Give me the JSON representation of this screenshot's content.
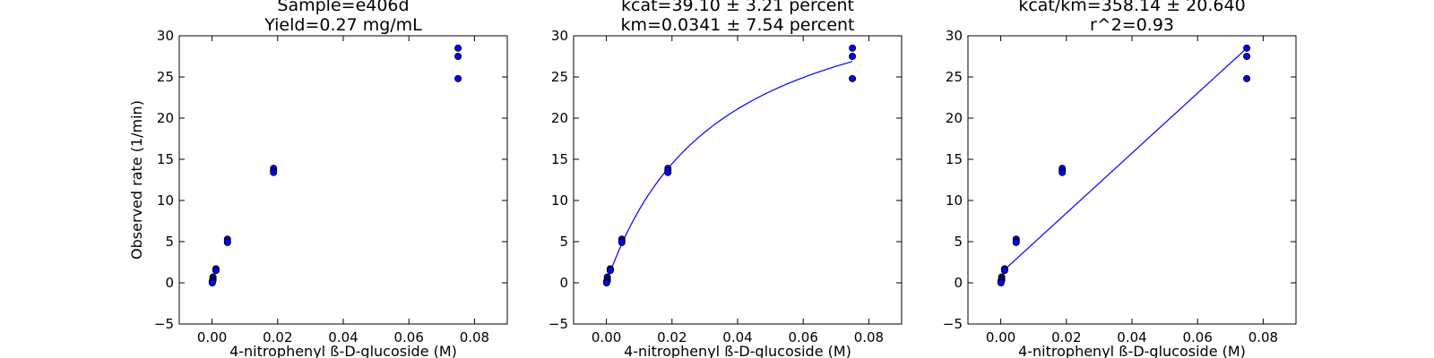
{
  "chart_data": [
    {
      "type": "scatter",
      "title": [
        "Sample=e406d",
        "Yield=0.27 mg/mL"
      ],
      "xlabel": "4-nitrophenyl ß-D-glucoside (M)",
      "ylabel": "Observed rate (1/min)",
      "xlim": [
        -0.01,
        0.09
      ],
      "ylim": [
        -5,
        30
      ],
      "xticks": [
        0.0,
        0.02,
        0.04,
        0.06,
        0.08
      ],
      "xtick_labels": [
        "0.00",
        "0.02",
        "0.04",
        "0.06",
        "0.08"
      ],
      "yticks": [
        -5,
        0,
        5,
        10,
        15,
        20,
        25,
        30
      ],
      "ytick_labels": [
        "−5",
        "0",
        "5",
        "10",
        "15",
        "20",
        "25",
        "30"
      ],
      "points": {
        "x": [
          0.075,
          0.075,
          0.075,
          0.01875,
          0.01875,
          0.01875,
          0.0047,
          0.0047,
          0.0047,
          0.00117,
          0.00117,
          0.00117,
          0.00029,
          0.00029,
          0.00029,
          7e-05,
          7e-05,
          7e-05
        ],
        "y": [
          28.5,
          27.5,
          24.8,
          13.9,
          13.6,
          13.4,
          5.3,
          5.1,
          4.9,
          1.7,
          1.6,
          1.5,
          0.7,
          0.5,
          0.3,
          0.2,
          0.1,
          0.0
        ]
      },
      "marker_color": "#0000ff",
      "curve": null
    },
    {
      "type": "scatter",
      "title": [
        "kcat=39.10 ± 3.21 percent",
        "km=0.0341 ± 7.54 percent"
      ],
      "xlabel": "4-nitrophenyl ß-D-glucoside (M)",
      "ylabel": "",
      "xlim": [
        -0.01,
        0.09
      ],
      "ylim": [
        -5,
        30
      ],
      "xticks": [
        0.0,
        0.02,
        0.04,
        0.06,
        0.08
      ],
      "xtick_labels": [
        "0.00",
        "0.02",
        "0.04",
        "0.06",
        "0.08"
      ],
      "yticks": [
        -5,
        0,
        5,
        10,
        15,
        20,
        25,
        30
      ],
      "ytick_labels": [
        "−5",
        "0",
        "5",
        "10",
        "15",
        "20",
        "25",
        "30"
      ],
      "points": {
        "x": [
          0.075,
          0.075,
          0.075,
          0.01875,
          0.01875,
          0.01875,
          0.0047,
          0.0047,
          0.0047,
          0.00117,
          0.00117,
          0.00117,
          0.00029,
          0.00029,
          0.00029,
          7e-05,
          7e-05,
          7e-05
        ],
        "y": [
          28.5,
          27.5,
          24.8,
          13.9,
          13.6,
          13.4,
          5.3,
          5.1,
          4.9,
          1.7,
          1.6,
          1.5,
          0.7,
          0.5,
          0.3,
          0.2,
          0.1,
          0.0
        ]
      },
      "marker_color": "#0000ff",
      "curve": {
        "kind": "michaelis-menten",
        "kcat": 39.1,
        "km": 0.0341,
        "x_range": [
          0.0,
          0.075
        ],
        "color": "#0000ff"
      }
    },
    {
      "type": "scatter",
      "title": [
        "kcat/km=358.14 ± 20.640",
        "r^2=0.93"
      ],
      "xlabel": "4-nitrophenyl ß-D-glucoside (M)",
      "ylabel": "",
      "xlim": [
        -0.01,
        0.09
      ],
      "ylim": [
        -5,
        30
      ],
      "xticks": [
        0.0,
        0.02,
        0.04,
        0.06,
        0.08
      ],
      "xtick_labels": [
        "0.00",
        "0.02",
        "0.04",
        "0.06",
        "0.08"
      ],
      "yticks": [
        -5,
        0,
        5,
        10,
        15,
        20,
        25,
        30
      ],
      "ytick_labels": [
        "−5",
        "0",
        "5",
        "10",
        "15",
        "20",
        "25",
        "30"
      ],
      "points": {
        "x": [
          0.075,
          0.075,
          0.075,
          0.01875,
          0.01875,
          0.01875,
          0.0047,
          0.0047,
          0.0047,
          0.00117,
          0.00117,
          0.00117,
          0.00029,
          0.00029,
          0.00029,
          7e-05,
          7e-05,
          7e-05
        ],
        "y": [
          28.5,
          27.5,
          24.8,
          13.9,
          13.6,
          13.4,
          5.3,
          5.1,
          4.9,
          1.7,
          1.6,
          1.5,
          0.7,
          0.5,
          0.3,
          0.2,
          0.1,
          0.0
        ]
      },
      "marker_color": "#0000ff",
      "curve": {
        "kind": "line",
        "points": [
          [
            0.00117,
            1.6
          ],
          [
            0.075,
            28.5
          ]
        ],
        "color": "#0000ff"
      }
    }
  ]
}
